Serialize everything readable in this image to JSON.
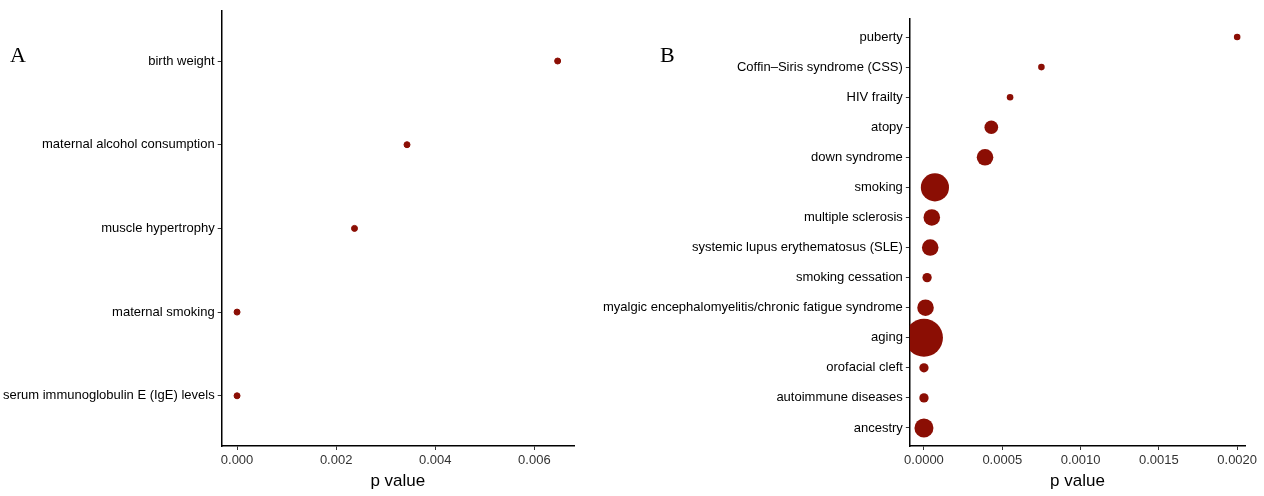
{
  "chart_data": [
    {
      "type": "scatter",
      "title": "A",
      "orientation": "horizontal",
      "marker": "circle",
      "color": "#8b0e04",
      "xlabel": "p value",
      "categories": [
        "birth weight",
        "maternal alcohol consumption",
        "muscle hypertrophy",
        "maternal smoking",
        "serum immunoglobulin E (IgE) levels"
      ],
      "values": [
        0.00647,
        0.00343,
        0.00237,
        0,
        0
      ],
      "xlim": [
        -0.00031,
        0.0068
      ],
      "xticks": [
        {
          "value": 0,
          "label": "0.000"
        },
        {
          "value": 0.002,
          "label": "0.002"
        },
        {
          "value": 0.004,
          "label": "0.004"
        },
        {
          "value": 0.006,
          "label": "0.006"
        }
      ]
    },
    {
      "type": "bubble",
      "title": "B",
      "orientation": "horizontal",
      "color": "#8b0e04",
      "xlabel": "p value",
      "categories": [
        "puberty",
        "Coffin–Siris syndrome (CSS)",
        "HIV frailty",
        "atopy",
        "down syndrome",
        "smoking",
        "multiple sclerosis",
        "systemic lupus erythematosus (SLE)",
        "smoking cessation",
        "myalgic encephalomyelitis/chronic fatigue syndrome",
        "aging",
        "orofacial cleft",
        "autoimmune diseases",
        "ancestry"
      ],
      "values": [
        0.002,
        0.00075,
        0.00055,
        0.00043,
        0.00039,
        7e-05,
        5e-05,
        4e-05,
        2e-05,
        1e-05,
        0,
        0,
        0,
        0
      ],
      "sizes": [
        0.03,
        0.03,
        0.03,
        0.13,
        0.19,
        0.55,
        0.19,
        0.19,
        0.06,
        0.19,
        1,
        0.06,
        0.06,
        0.25
      ],
      "xlim": [
        -9e-05,
        0.00205
      ],
      "xticks": [
        {
          "value": 0,
          "label": "0.0000"
        },
        {
          "value": 0.0005,
          "label": "0.0005"
        },
        {
          "value": 0.001,
          "label": "0.0010"
        },
        {
          "value": 0.0015,
          "label": "0.0015"
        },
        {
          "value": 0.002,
          "label": "0.0020"
        }
      ]
    }
  ]
}
